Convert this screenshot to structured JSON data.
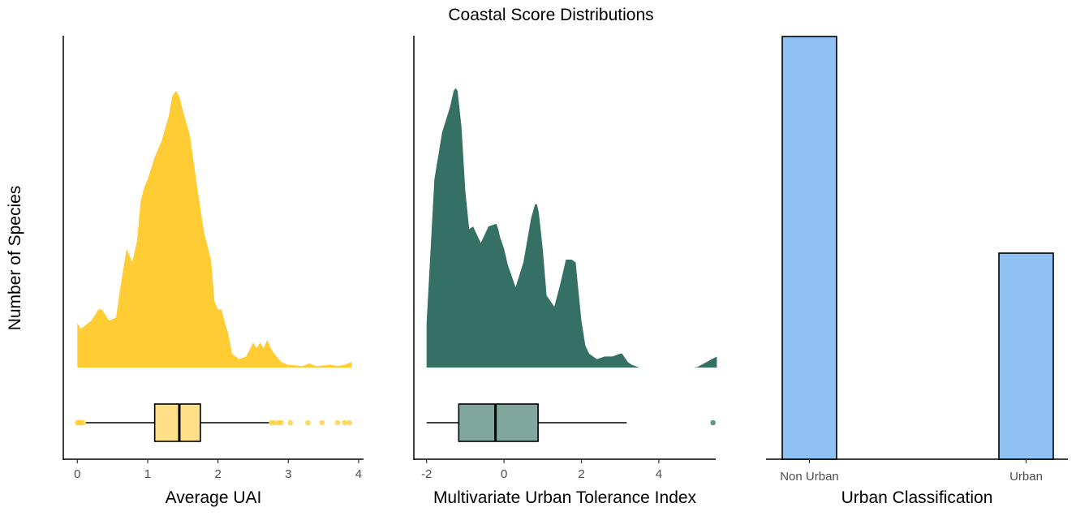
{
  "figure": {
    "title": "Coastal Score Distributions",
    "shared_ylabel": "Number of Species"
  },
  "colors": {
    "uai": "#FFCC33",
    "uai_box": "#FFE088",
    "muti": "#347164",
    "muti_box": "#80A69E",
    "urban": "#8FC2F2",
    "axis": "#000000",
    "tick_text": "#4d4d4d"
  },
  "chart_data": [
    {
      "type": "density",
      "panel": "uai",
      "xlabel": "Average UAI",
      "xlim": [
        -0.2,
        4.07
      ],
      "xticks": [
        0,
        1,
        2,
        3,
        4
      ],
      "density": {
        "x": [
          0,
          0.05,
          0.1,
          0.2,
          0.3,
          0.35,
          0.45,
          0.55,
          0.6,
          0.7,
          0.78,
          0.85,
          0.9,
          0.95,
          1.0,
          1.05,
          1.1,
          1.2,
          1.3,
          1.35,
          1.4,
          1.45,
          1.5,
          1.6,
          1.7,
          1.8,
          1.9,
          1.95,
          2.0,
          2.05,
          2.1,
          2.15,
          2.2,
          2.3,
          2.4,
          2.5,
          2.55,
          2.6,
          2.65,
          2.7,
          2.75,
          2.8,
          2.9,
          3.0,
          3.2,
          3.3,
          3.4,
          3.6,
          3.7,
          3.8,
          3.9
        ],
        "y": [
          0.16,
          0.14,
          0.15,
          0.17,
          0.21,
          0.21,
          0.17,
          0.18,
          0.27,
          0.43,
          0.38,
          0.46,
          0.6,
          0.65,
          0.68,
          0.72,
          0.76,
          0.82,
          0.91,
          0.98,
          1.0,
          0.98,
          0.93,
          0.84,
          0.66,
          0.49,
          0.39,
          0.24,
          0.21,
          0.21,
          0.16,
          0.12,
          0.05,
          0.03,
          0.04,
          0.09,
          0.07,
          0.09,
          0.07,
          0.1,
          0.07,
          0.05,
          0.02,
          0.01,
          0.005,
          0.015,
          0.005,
          0.01,
          0.005,
          0.01,
          0.02
        ]
      },
      "boxplot": {
        "whisker_low": 0.12,
        "q1": 1.1,
        "median": 1.45,
        "q3": 1.75,
        "whisker_high": 2.73,
        "outliers": [
          0.0,
          0.02,
          0.04,
          0.06,
          0.08,
          2.76,
          2.8,
          2.86,
          2.9,
          3.03,
          3.28,
          3.48,
          3.7,
          3.8,
          3.87
        ]
      }
    },
    {
      "type": "density",
      "panel": "muti",
      "xlabel": "Multivariate Urban Tolerance Index",
      "xlim": [
        -2.33,
        5.47
      ],
      "xticks": [
        -2,
        0,
        2,
        4
      ],
      "density": {
        "x": [
          -2.0,
          -1.9,
          -1.8,
          -1.6,
          -1.4,
          -1.3,
          -1.25,
          -1.2,
          -1.1,
          -1.0,
          -0.9,
          -0.8,
          -0.6,
          -0.4,
          -0.2,
          -0.15,
          -0.1,
          0.0,
          0.1,
          0.3,
          0.5,
          0.7,
          0.8,
          0.85,
          0.9,
          1.0,
          1.1,
          1.3,
          1.45,
          1.6,
          1.75,
          1.85,
          1.9,
          2.0,
          2.1,
          2.2,
          2.4,
          2.6,
          2.8,
          3.0,
          3.05,
          3.1,
          3.2,
          3.3,
          3.5,
          3.7,
          4.9,
          5.0,
          5.1,
          5.3,
          5.5
        ],
        "y": [
          0.16,
          0.42,
          0.68,
          0.85,
          0.94,
          1.0,
          1.01,
          1.0,
          0.87,
          0.64,
          0.5,
          0.51,
          0.45,
          0.51,
          0.52,
          0.5,
          0.47,
          0.43,
          0.37,
          0.29,
          0.38,
          0.54,
          0.59,
          0.59,
          0.56,
          0.43,
          0.26,
          0.22,
          0.3,
          0.39,
          0.39,
          0.38,
          0.31,
          0.17,
          0.08,
          0.05,
          0.03,
          0.04,
          0.04,
          0.05,
          0.05,
          0.04,
          0.02,
          0.01,
          0.0,
          0.0,
          0.0,
          0.002,
          0.01,
          0.025,
          0.04
        ]
      },
      "boxplot": {
        "whisker_low": -2.0,
        "q1": -1.17,
        "median": -0.22,
        "q3": 0.88,
        "whisker_high": 3.17,
        "outliers": [
          5.4
        ]
      }
    },
    {
      "type": "bar",
      "panel": "urban",
      "xlabel": "Urban Classification",
      "categories": [
        "Non Urban",
        "Urban"
      ],
      "values": [
        0.8,
        0.39
      ],
      "ylim": [
        0,
        0.8
      ]
    }
  ]
}
